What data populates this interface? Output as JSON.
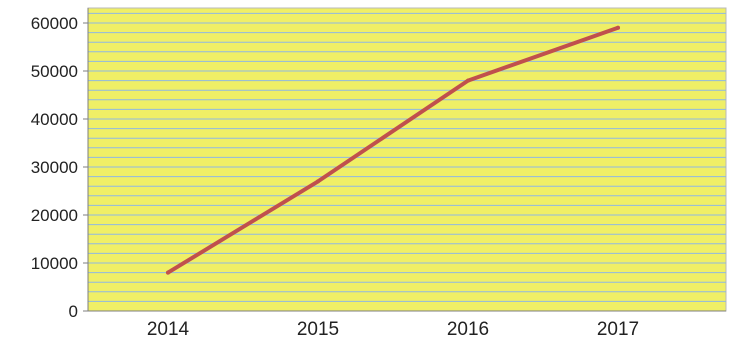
{
  "chart_data": {
    "type": "line",
    "title": "",
    "xlabel": "",
    "ylabel": "",
    "categories": [
      "2014",
      "2015",
      "2016",
      "2017"
    ],
    "series": [
      {
        "values": [
          8000,
          27000,
          48000,
          59000
        ]
      }
    ],
    "y_ticks": [
      "0",
      "10000",
      "20000",
      "30000",
      "40000",
      "50000",
      "60000"
    ],
    "ylim": [
      0,
      60000
    ],
    "grid": true,
    "legend": "none",
    "colors": {
      "plot_background": "#efef66",
      "gridline": "#8fb8e2",
      "series_line": "#c0504d",
      "axis": "#7f7f7f"
    }
  }
}
